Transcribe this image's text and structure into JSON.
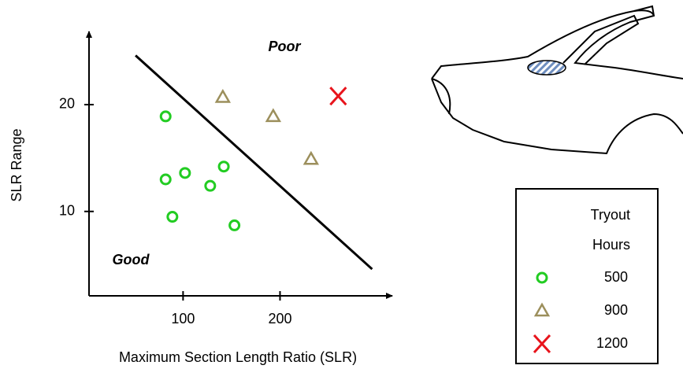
{
  "chart_data": {
    "type": "scatter",
    "x_label": "Maximum Section Length Ratio (SLR)",
    "y_label": "SLR Range",
    "xlim": [
      3,
      315
    ],
    "ylim": [
      2.1,
      26.7
    ],
    "xticks": [
      100,
      200
    ],
    "yticks": [
      10,
      20
    ],
    "series": [
      {
        "name": "500",
        "color": "#22cc22",
        "marker": "circle",
        "x": [
          82,
          82,
          102,
          128,
          142,
          89,
          153
        ],
        "y": [
          18.9,
          13.0,
          13.6,
          12.4,
          14.2,
          9.5,
          8.7
        ]
      },
      {
        "name": "900",
        "color": "#9c8f5c",
        "marker": "triangle",
        "x": [
          141,
          193,
          232
        ],
        "y": [
          20.7,
          18.9,
          14.9
        ]
      },
      {
        "name": "1200",
        "color": "#e8141c",
        "marker": "x",
        "x": [
          260
        ],
        "y": [
          20.8
        ]
      }
    ],
    "boundary": {
      "x": [
        51,
        295
      ],
      "y": [
        24.6,
        4.6
      ]
    },
    "annotations": [
      {
        "text": "Poor",
        "color": "#e8141c"
      },
      {
        "text": "Good",
        "color": "#22cc22"
      }
    ],
    "legend_title": [
      "Tryout",
      "Hours"
    ]
  }
}
